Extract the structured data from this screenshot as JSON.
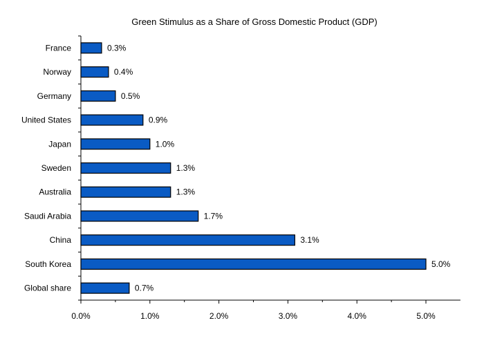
{
  "chart_data": {
    "type": "bar",
    "orientation": "horizontal",
    "title": "Green Stimulus as a Share of Gross Domestic Product (GDP)",
    "categories": [
      "France",
      "Norway",
      "Germany",
      "United States",
      "Japan",
      "Sweden",
      "Australia",
      "Saudi Arabia",
      "China",
      "South Korea",
      "Global share"
    ],
    "values": [
      0.3,
      0.4,
      0.5,
      0.9,
      1.0,
      1.3,
      1.3,
      1.7,
      3.1,
      5.0,
      0.7
    ],
    "data_labels": [
      "0.3%",
      "0.4%",
      "0.5%",
      "0.9%",
      "1.0%",
      "1.3%",
      "1.3%",
      "1.7%",
      "3.1%",
      "5.0%",
      "0.7%"
    ],
    "xlim": [
      0,
      5.5
    ],
    "x_ticks": [
      0,
      1,
      2,
      3,
      4,
      5
    ],
    "x_tick_labels": [
      "0.0%",
      "1.0%",
      "2.0%",
      "3.0%",
      "4.0%",
      "5.0%"
    ],
    "xlabel": "",
    "ylabel": "",
    "grid": false,
    "legend": "none",
    "bar_color": "#0A5BC4",
    "bar_edge_color": "#000000"
  }
}
